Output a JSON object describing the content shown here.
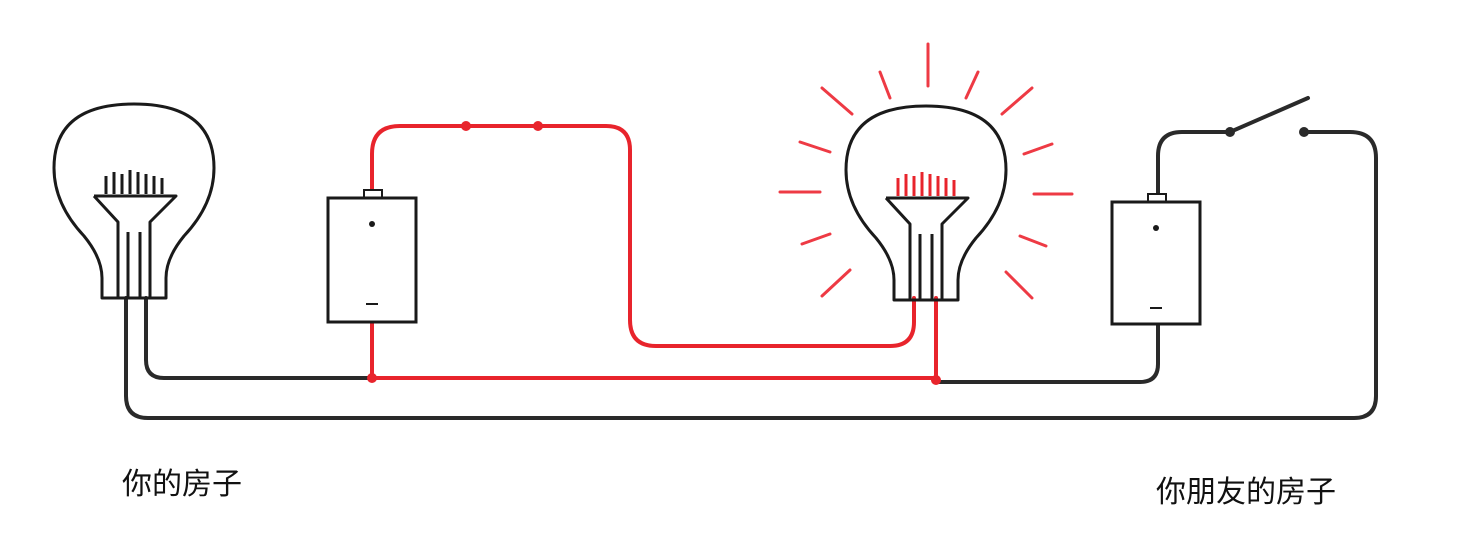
{
  "labels": {
    "your_house": "你的房子",
    "friend_house": "你朋友的房子"
  },
  "colors": {
    "wire_dark": "#2a2a2a",
    "wire_red": "#e8242c",
    "glow": "#ee3a44",
    "bulb_outline": "#1a1a1a"
  },
  "state": {
    "your_bulb": "off",
    "friend_bulb": "on",
    "friend_switch": "open"
  }
}
